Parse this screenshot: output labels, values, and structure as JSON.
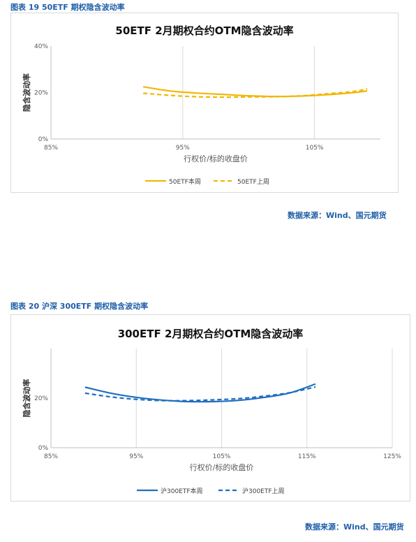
{
  "figures": [
    {
      "caption": "图表 19  50ETF 期权隐含波动率",
      "source": "数据来源：Wind、国元期货"
    },
    {
      "caption": "图表 20  沪深 300ETF 期权隐含波动率",
      "source": "数据来源：Wind、国元期货"
    }
  ],
  "chart_data": [
    {
      "type": "line",
      "title": "50ETF 2月期权合约OTM隐含波动率",
      "xlabel": "行权价/标的收盘价",
      "ylabel": "隐含波动率",
      "xlim": [
        0.85,
        1.1
      ],
      "ylim": [
        0,
        0.4
      ],
      "x_ticks": [
        0.85,
        0.95,
        1.05
      ],
      "x_tick_labels": [
        "85%",
        "95%",
        "105%"
      ],
      "y_ticks": [
        0,
        0.2,
        0.4
      ],
      "y_tick_labels": [
        "0%",
        "20%",
        "40%"
      ],
      "grid": "vertical",
      "legend": "bottom",
      "colors": [
        "#f2b705",
        "#f2b705"
      ],
      "series": [
        {
          "name": "50ETF本周",
          "style": "solid",
          "x": [
            0.92,
            0.94,
            0.96,
            0.98,
            1.0,
            1.02,
            1.04,
            1.06,
            1.08,
            1.09
          ],
          "y": [
            0.225,
            0.207,
            0.198,
            0.192,
            0.186,
            0.183,
            0.185,
            0.191,
            0.2,
            0.207
          ]
        },
        {
          "name": "50ETF上周",
          "style": "dashed",
          "x": [
            0.92,
            0.94,
            0.96,
            0.98,
            1.0,
            1.02,
            1.04,
            1.06,
            1.08,
            1.09
          ],
          "y": [
            0.197,
            0.188,
            0.182,
            0.18,
            0.181,
            0.182,
            0.186,
            0.195,
            0.205,
            0.216
          ]
        }
      ]
    },
    {
      "type": "line",
      "title": "300ETF 2月期权合约OTM隐含波动率",
      "xlabel": "行权价/标的收盘价",
      "ylabel": "隐含波动率",
      "xlim": [
        0.85,
        1.25
      ],
      "ylim": [
        0,
        0.4
      ],
      "x_ticks": [
        0.85,
        0.95,
        1.05,
        1.15,
        1.25
      ],
      "x_tick_labels": [
        "85%",
        "95%",
        "105%",
        "115%",
        "125%"
      ],
      "y_ticks": [
        0,
        0.2
      ],
      "y_tick_labels": [
        "0%",
        "20%"
      ],
      "grid": "vertical",
      "legend": "bottom",
      "colors": [
        "#1f6fbf",
        "#1f6fbf"
      ],
      "series": [
        {
          "name": "沪300ETF本周",
          "style": "solid",
          "x": [
            0.89,
            0.92,
            0.95,
            0.98,
            1.01,
            1.04,
            1.07,
            1.1,
            1.13,
            1.16
          ],
          "y": [
            0.244,
            0.22,
            0.203,
            0.192,
            0.186,
            0.186,
            0.191,
            0.203,
            0.221,
            0.257
          ]
        },
        {
          "name": "沪300ETF上周",
          "style": "dashed",
          "x": [
            0.89,
            0.92,
            0.95,
            0.98,
            1.01,
            1.04,
            1.07,
            1.1,
            1.13,
            1.16
          ],
          "y": [
            0.22,
            0.205,
            0.195,
            0.19,
            0.19,
            0.193,
            0.198,
            0.208,
            0.222,
            0.245
          ]
        }
      ]
    }
  ]
}
